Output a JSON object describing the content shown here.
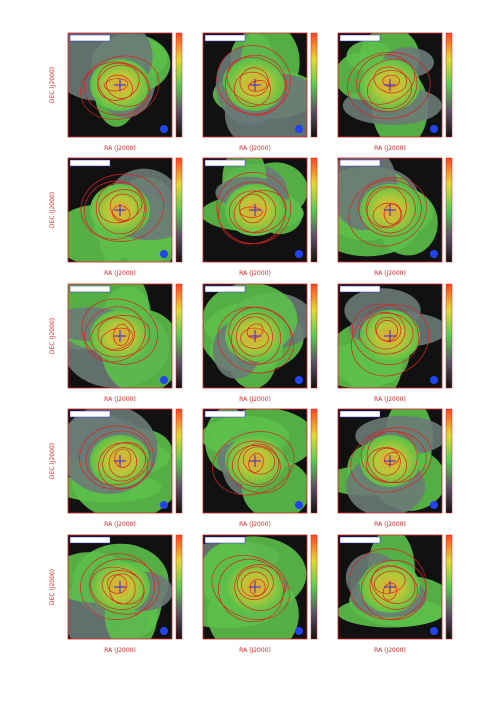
{
  "figure": {
    "x_label": "RA (J2000)",
    "y_label": "DEC (J2000)"
  }
}
